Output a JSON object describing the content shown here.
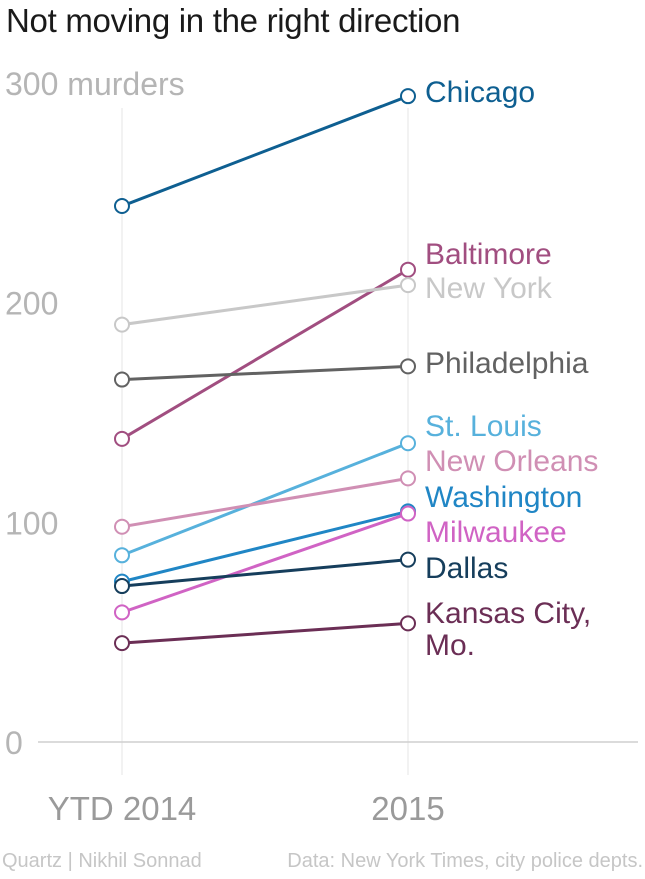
{
  "title": "Not moving in the right direction",
  "footer": {
    "credit": "Quartz | Nikhil Sonnad",
    "source": "Data: New York Times, city police depts."
  },
  "chart_data": {
    "type": "line",
    "title": "Not moving in the right direction",
    "categories": [
      "YTD 2014",
      "2015"
    ],
    "y_unit_label": "300 murders",
    "ylim": [
      0,
      300
    ],
    "yticks": [
      "0",
      "100",
      "200",
      "300 murders"
    ],
    "grid": true,
    "series": [
      {
        "name": "Chicago",
        "values": [
          244,
          294
        ],
        "color": "#0e5f91",
        "label_lines": [
          "Chicago"
        ]
      },
      {
        "name": "Baltimore",
        "values": [
          138,
          215
        ],
        "color": "#a14e80",
        "label_lines": [
          "Baltimore"
        ]
      },
      {
        "name": "New York",
        "values": [
          190,
          208
        ],
        "color": "#c8c8c8",
        "label_lines": [
          "New York"
        ]
      },
      {
        "name": "Philadelphia",
        "values": [
          165,
          171
        ],
        "color": "#626262",
        "label_lines": [
          "Philadelphia"
        ]
      },
      {
        "name": "St. Louis",
        "values": [
          85,
          136
        ],
        "color": "#57b1dc",
        "label_lines": [
          "St. Louis"
        ]
      },
      {
        "name": "New Orleans",
        "values": [
          98,
          120
        ],
        "color": "#d08fb4",
        "label_lines": [
          "New Orleans"
        ]
      },
      {
        "name": "Washington",
        "values": [
          73,
          105
        ],
        "color": "#2086c5",
        "label_lines": [
          "Washington"
        ]
      },
      {
        "name": "Milwaukee",
        "values": [
          59,
          104
        ],
        "color": "#d063c4",
        "label_lines": [
          "Milwaukee"
        ]
      },
      {
        "name": "Dallas",
        "values": [
          71,
          83
        ],
        "color": "#163e5c",
        "label_lines": [
          "Dallas"
        ]
      },
      {
        "name": "Kansas City, Mo.",
        "values": [
          45,
          54
        ],
        "color": "#6b2e55",
        "label_lines": [
          "Kansas City,",
          "Mo."
        ]
      }
    ]
  }
}
